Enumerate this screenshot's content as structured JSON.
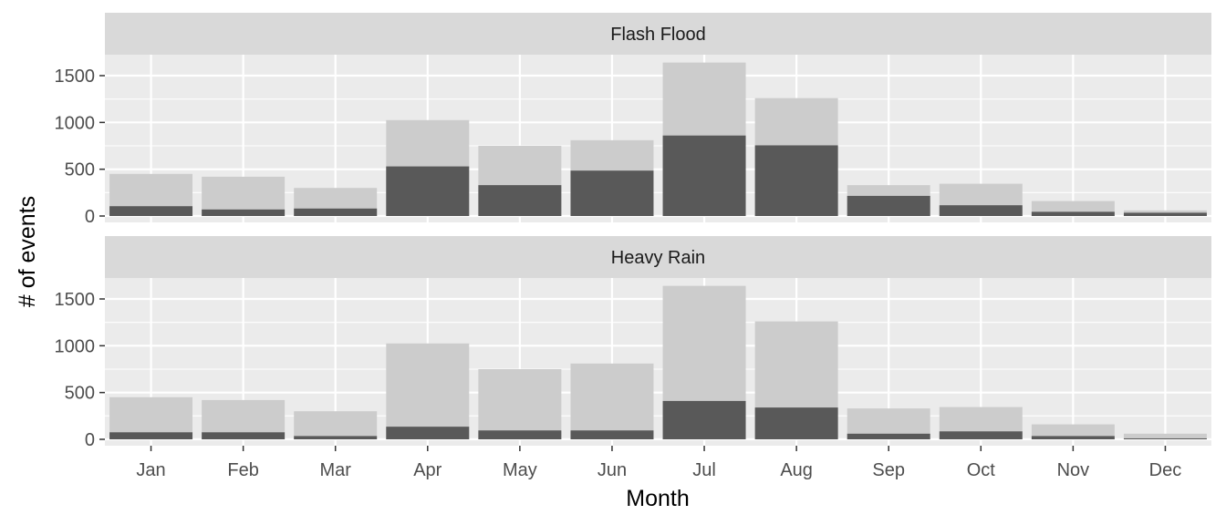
{
  "chart_data": {
    "type": "bar",
    "xlabel": "Month",
    "ylabel": "# of events",
    "ylim": [
      0,
      1750
    ],
    "yticks": [
      0,
      500,
      1000,
      1500
    ],
    "categories": [
      "Jan",
      "Feb",
      "Mar",
      "Apr",
      "May",
      "Jun",
      "Jul",
      "Aug",
      "Sep",
      "Oct",
      "Nov",
      "Dec"
    ],
    "total_values": [
      450,
      420,
      300,
      1025,
      750,
      810,
      1640,
      1260,
      330,
      345,
      160,
      60
    ],
    "panels": [
      {
        "title": "Flash Flood",
        "values": [
          105,
          70,
          80,
          530,
          330,
          485,
          860,
          755,
          215,
          115,
          45,
          35
        ]
      },
      {
        "title": "Heavy Rain",
        "values": [
          75,
          75,
          35,
          135,
          95,
          95,
          410,
          340,
          60,
          85,
          35,
          10
        ]
      }
    ],
    "colors": {
      "panel_bg": "#EBEBEB",
      "strip_bg": "#D9D9D9",
      "grid": "#FFFFFF",
      "total_bar": "#CCCCCC",
      "event_bar": "#595959"
    },
    "grid": true,
    "legend": "none"
  }
}
